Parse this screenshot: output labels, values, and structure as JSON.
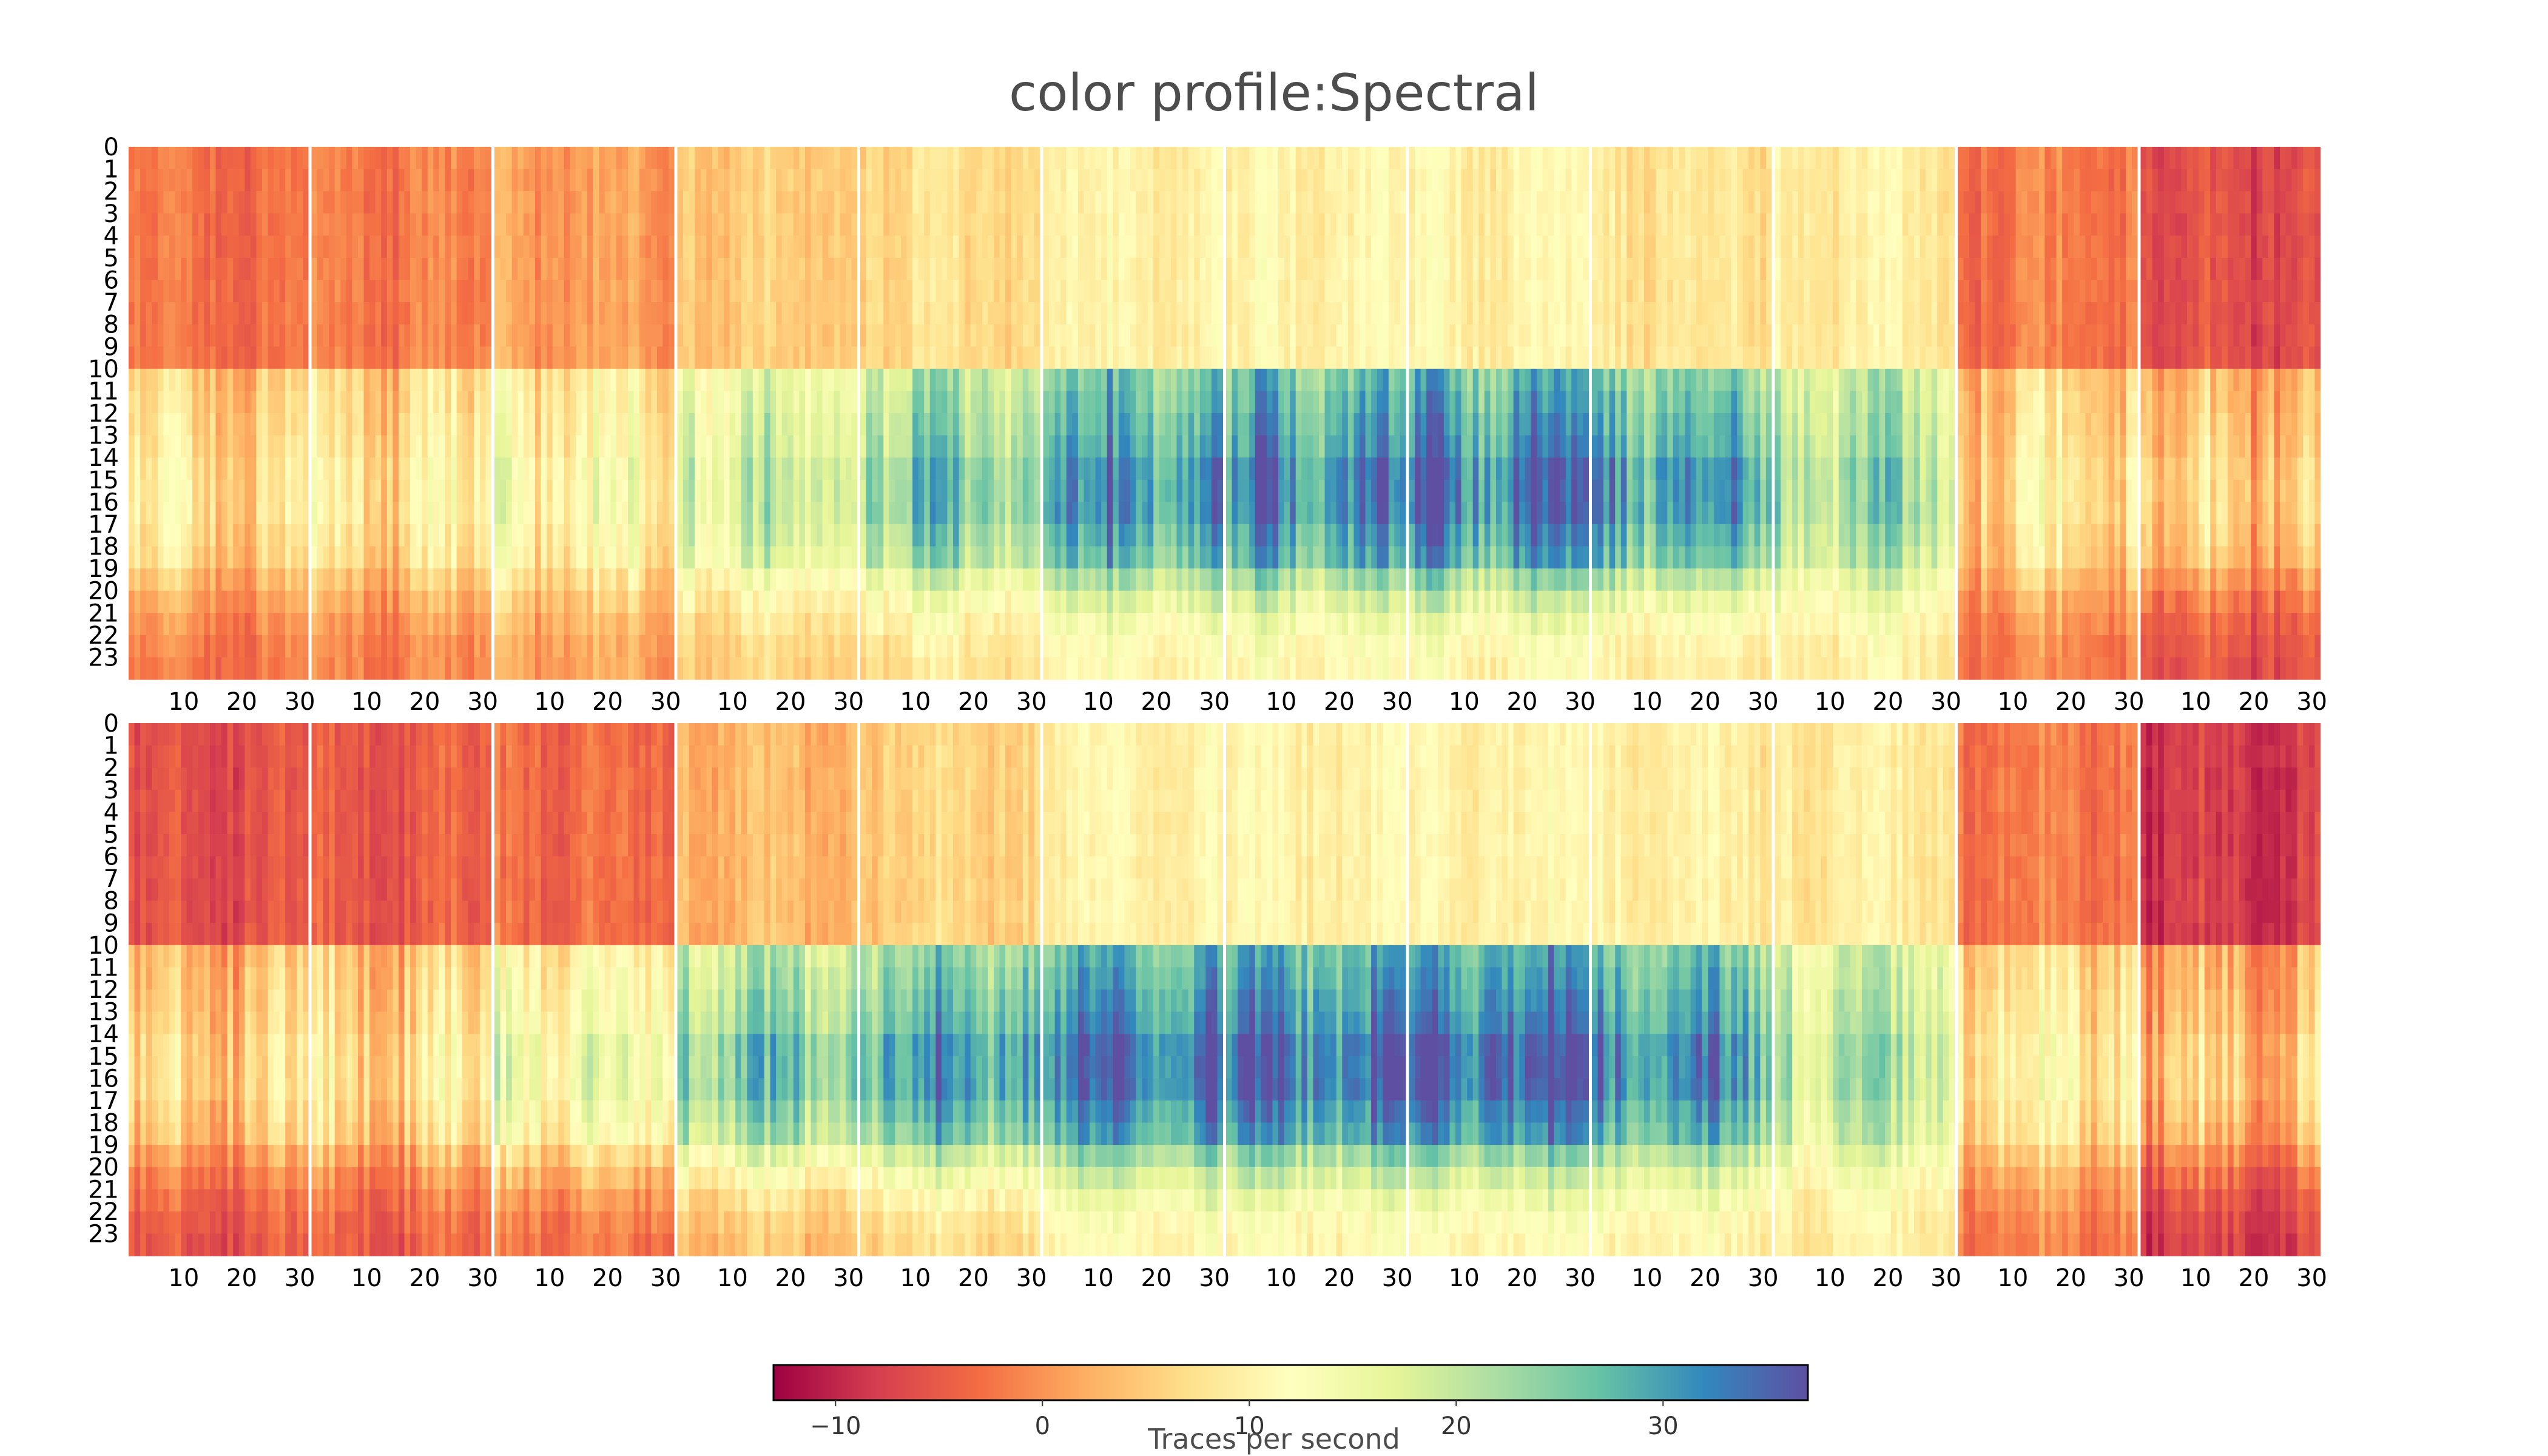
{
  "chart_data": {
    "type": "heatmap",
    "title": "color profile:Spectral",
    "colormap": "Spectral",
    "colorbar": {
      "label": "Traces per second",
      "range": [
        -13,
        37
      ],
      "ticks": [
        -10,
        0,
        10,
        20,
        30
      ],
      "tick_labels": [
        "−10",
        "0",
        "10",
        "20",
        "30"
      ],
      "stops": [
        "#9e0142",
        "#d53e4f",
        "#f46d43",
        "#fdae61",
        "#fee08b",
        "#ffffbf",
        "#e6f598",
        "#abdda4",
        "#66c2a5",
        "#3288bd",
        "#5e4fa2"
      ]
    },
    "panels": [
      {
        "name": "top",
        "y_labels": [
          "0",
          "1",
          "2",
          "3",
          "4",
          "5",
          "6",
          "7",
          "8",
          "9",
          "10",
          "11",
          "12",
          "13",
          "14",
          "15",
          "16",
          "17",
          "18",
          "19",
          "20",
          "21",
          "22",
          "23"
        ],
        "months": 12,
        "days_per_month": 31,
        "x_tick_labels": [
          "10",
          "20",
          "30"
        ],
        "hourly_pattern": [
          0,
          0,
          0,
          0,
          0,
          0,
          0,
          0,
          0,
          0,
          0.75,
          0.8,
          0.85,
          0.9,
          1,
          1,
          1,
          0.9,
          0.82,
          0.55,
          0.35,
          0.2,
          0.1,
          0.05
        ],
        "night_value_by_month": [
          -3,
          -2,
          1,
          5,
          7,
          10,
          10,
          10,
          8,
          9,
          -2,
          -6
        ],
        "midday_value_by_month": [
          7,
          8,
          12,
          19,
          25,
          31,
          31,
          33,
          30,
          22,
          8,
          6
        ]
      },
      {
        "name": "bottom",
        "y_labels": [
          "0",
          "1",
          "2",
          "3",
          "4",
          "5",
          "6",
          "7",
          "8",
          "9",
          "10",
          "11",
          "12",
          "13",
          "14",
          "15",
          "16",
          "17",
          "18",
          "19",
          "20",
          "21",
          "22",
          "23"
        ],
        "months": 12,
        "days_per_month": 31,
        "x_tick_labels": [
          "10",
          "20",
          "30"
        ],
        "hourly_pattern": [
          0,
          0,
          0,
          0,
          0,
          0,
          0,
          0,
          0,
          0,
          0.75,
          0.8,
          0.85,
          0.9,
          1,
          1,
          1,
          0.9,
          0.82,
          0.55,
          0.35,
          0.2,
          0.1,
          0.05
        ],
        "night_value_by_month": [
          -6,
          -5,
          -3,
          3,
          6,
          10,
          10,
          10,
          9,
          9,
          -2,
          -8
        ],
        "midday_value_by_month": [
          6,
          7,
          15,
          25,
          30,
          33,
          33,
          35,
          30,
          21,
          10,
          5
        ]
      }
    ]
  }
}
